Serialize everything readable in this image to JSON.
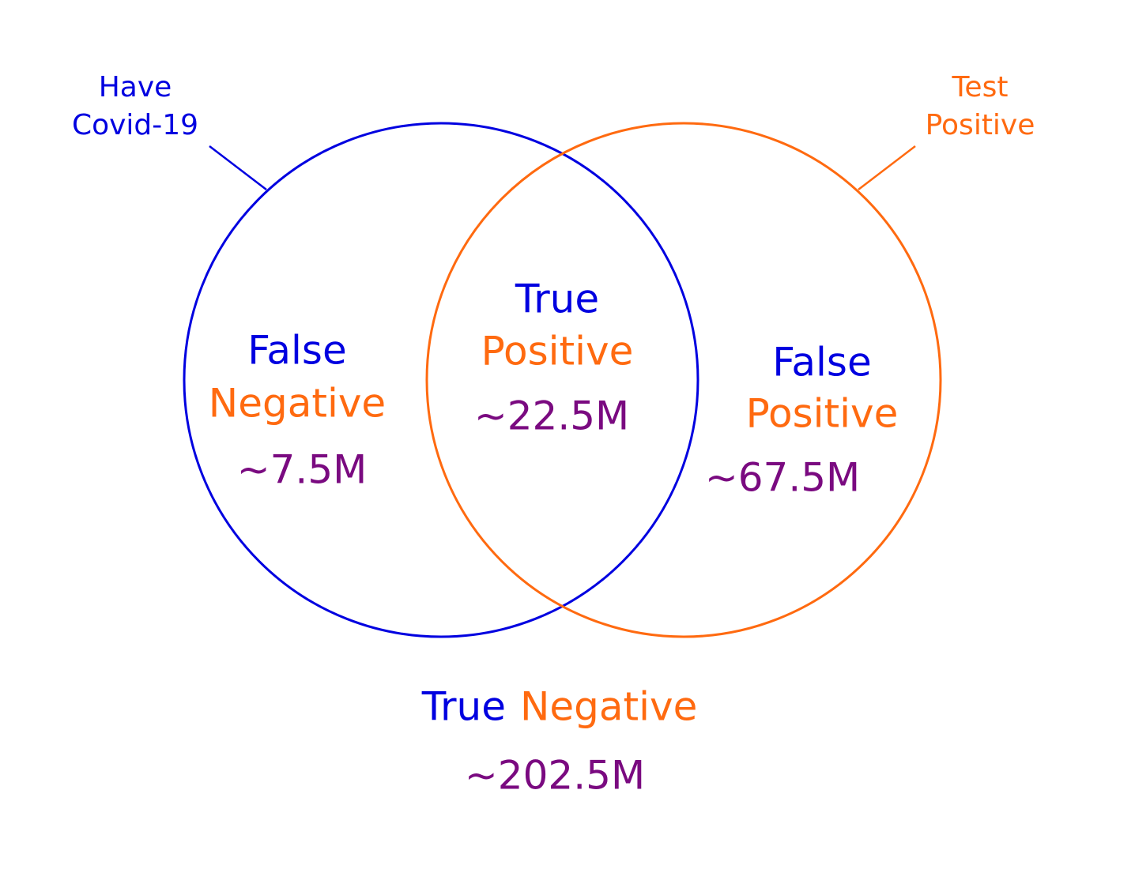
{
  "sets": [
    {
      "label_lines": [
        "Have",
        "Covid-19"
      ]
    },
    {
      "label_lines": [
        "Test",
        "Positive"
      ]
    }
  ],
  "regions": {
    "false_negative": {
      "words": [
        "False",
        "Negative"
      ],
      "count": "~7.5M"
    },
    "true_positive": {
      "words": [
        "True",
        "Positive"
      ],
      "count": "~22.5M"
    },
    "false_positive": {
      "words": [
        "False",
        "Positive"
      ],
      "count": "~67.5M"
    },
    "true_negative": {
      "words": [
        "True",
        "Negative"
      ],
      "count": "~202.5M"
    }
  }
}
